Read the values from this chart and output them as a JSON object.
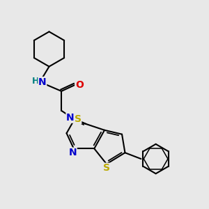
{
  "bg_color": "#e8e8e8",
  "bond_color": "#000000",
  "bond_width": 1.5,
  "atom_colors": {
    "N": "#0000cc",
    "O": "#dd0000",
    "S_thio": "#bbaa00",
    "S_link": "#bbaa00",
    "H": "#008080",
    "C": "#000000"
  },
  "font_size": 9,
  "fig_width": 3.0,
  "fig_height": 3.0,
  "dpi": 100
}
